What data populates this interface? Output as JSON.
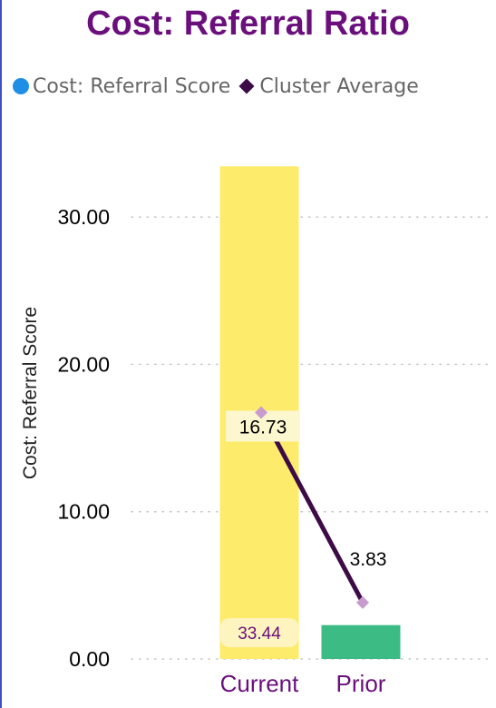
{
  "chart_data": {
    "type": "bar",
    "title": "Cost: Referral Ratio",
    "ylabel": "Cost: Referral Score",
    "xlabel": "",
    "categories": [
      "Current",
      "Prior"
    ],
    "ylim": [
      0,
      35
    ],
    "yticks": [
      "0.00",
      "10.00",
      "20.00",
      "30.00"
    ],
    "ytick_values": [
      0,
      10,
      20,
      30
    ],
    "grid": true,
    "legend_position": "top-left",
    "series": [
      {
        "name": "Cost: Referral Score",
        "kind": "bar",
        "values": [
          33.44,
          2.3
        ],
        "value_labels": [
          "33.44",
          ""
        ],
        "colors": [
          "#fdec6b",
          "#3dbb85"
        ],
        "legend_color": "#1f8fe6"
      },
      {
        "name": "Cluster Average",
        "kind": "line",
        "values": [
          16.73,
          3.83
        ],
        "value_labels": [
          "16.73",
          "3.83"
        ],
        "line_color": "#3d0b45",
        "marker_color": "#c79ccd",
        "legend_color": "#3d0b45"
      }
    ]
  }
}
